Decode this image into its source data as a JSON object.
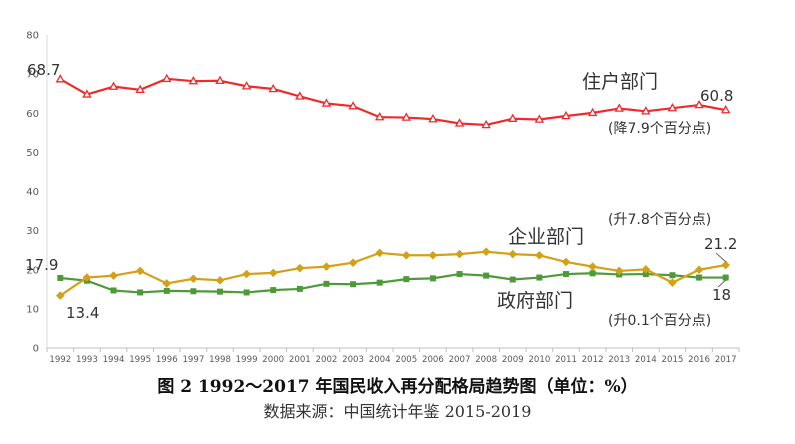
{
  "chart_data": {
    "type": "line",
    "categories": [
      "1992",
      "1993",
      "1994",
      "1995",
      "1996",
      "1997",
      "1998",
      "1999",
      "2000",
      "2001",
      "2002",
      "2003",
      "2004",
      "2005",
      "2006",
      "2007",
      "2008",
      "2009",
      "2010",
      "2011",
      "2012",
      "2013",
      "2014",
      "2015",
      "2016",
      "2017"
    ],
    "ylim": [
      0,
      80
    ],
    "yticks": [
      0,
      10,
      20,
      30,
      40,
      50,
      60,
      70,
      80
    ],
    "grid": false,
    "series": [
      {
        "key": "household",
        "name": "住户部门",
        "color": "#ee2a2a",
        "marker": "triangle",
        "values": [
          68.7,
          64.8,
          66.8,
          66.0,
          68.8,
          68.2,
          68.3,
          66.9,
          66.2,
          64.3,
          62.5,
          61.8,
          59.0,
          58.9,
          58.5,
          57.4,
          57.0,
          58.6,
          58.4,
          59.3,
          60.1,
          61.2,
          60.5,
          61.3,
          62.1,
          60.8
        ]
      },
      {
        "key": "enterprise",
        "name": "企业部门",
        "color": "#d4a017",
        "marker": "diamond",
        "values": [
          13.4,
          18.0,
          18.5,
          19.7,
          16.5,
          17.7,
          17.3,
          18.9,
          19.2,
          20.4,
          20.8,
          21.8,
          24.3,
          23.7,
          23.7,
          24.0,
          24.6,
          24.0,
          23.7,
          22.0,
          20.8,
          19.7,
          20.1,
          16.7,
          20.0,
          21.2
        ]
      },
      {
        "key": "government",
        "name": "政府部门",
        "color": "#4e9a3a",
        "marker": "square",
        "values": [
          17.9,
          17.2,
          14.7,
          14.2,
          14.6,
          14.5,
          14.4,
          14.2,
          14.8,
          15.1,
          16.4,
          16.3,
          16.7,
          17.6,
          17.8,
          18.9,
          18.5,
          17.5,
          18.0,
          18.9,
          19.1,
          18.8,
          18.9,
          18.6,
          18.0,
          18.0
        ]
      }
    ],
    "annotations": {
      "household_start": "68.7",
      "household_end": "60.8",
      "household_change": "(降7.9个百分点)",
      "enterprise_start": "13.4",
      "enterprise_end": "21.2",
      "enterprise_change": "(升7.8个百分点)",
      "government_start": "17.9",
      "government_end": "18",
      "government_change": "(升0.1个百分点)"
    }
  },
  "caption": {
    "title": "图 2 1992～2017 年国民收入再分配格局趋势图（单位：%）",
    "source": "数据来源：中国统计年鉴 2015-2019"
  }
}
